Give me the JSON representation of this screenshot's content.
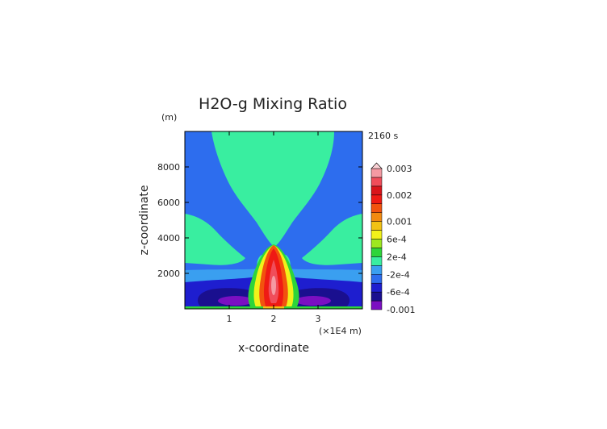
{
  "chart_data": {
    "type": "contour",
    "title": "H2O-g Mixing Ratio",
    "time_label": "2160 s",
    "xlabel": "x-coordinate",
    "x_unit_label": "(×1E4 m)",
    "ylabel": "z-coordinate",
    "y_unit_label": "(m)",
    "xlim": [
      0,
      4
    ],
    "ylim": [
      0,
      10000
    ],
    "x_ticks": [
      1,
      2,
      3
    ],
    "y_ticks": [
      2000,
      4000,
      6000,
      8000
    ],
    "colorbar": {
      "levels": [
        "-0.001",
        "-8e-4",
        "-6e-4",
        "-4e-4",
        "-2e-4",
        "0",
        "2e-4",
        "4e-4",
        "6e-4",
        "8e-4",
        "0.001",
        "0.0013",
        "0.0017",
        "0.002",
        "0.0023",
        "0.0027",
        "0.003"
      ],
      "labeled": [
        "0.003",
        "0.002",
        "0.001",
        "6e-4",
        "2e-4",
        "-2e-4",
        "-6e-4",
        "-0.001"
      ],
      "colors": [
        "#7b0fc2",
        "#1a0f8f",
        "#1e1ecf",
        "#2d6dee",
        "#3a9ff0",
        "#39eea0",
        "#2ed53a",
        "#9ee81f",
        "#f2f21a",
        "#f2c214",
        "#f28a10",
        "#f2530e",
        "#ef1a14",
        "#d9141a",
        "#f04d5a",
        "#f59aa3"
      ],
      "extend": "both"
    }
  }
}
